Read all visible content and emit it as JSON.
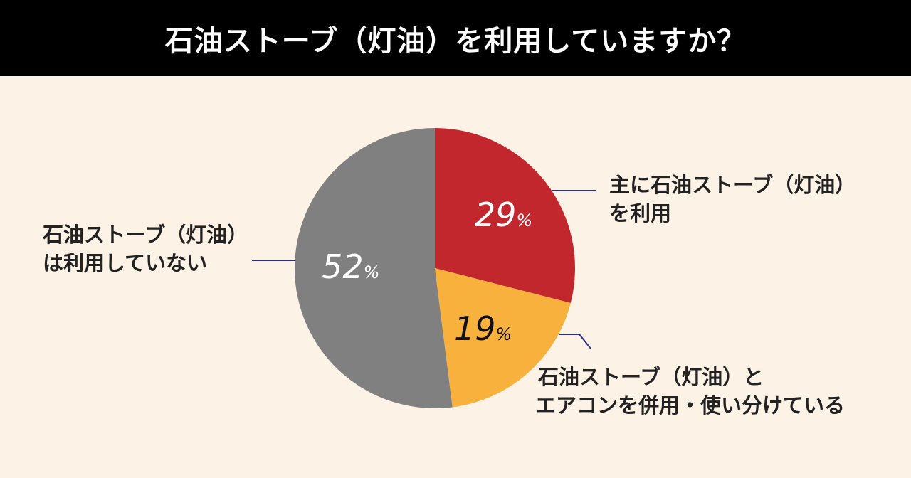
{
  "title": "石油ストーブ（灯油）を利用していますか？",
  "colors": {
    "background": "#fdf2e6",
    "title_bar": "#000000",
    "leader_line": "#2b2f8f"
  },
  "chart_data": {
    "type": "pie",
    "title": "石油ストーブ（灯油）を利用していますか？",
    "slices": [
      {
        "name_lines": [
          "主に石油ストーブ（灯油）",
          "を利用"
        ],
        "value": 29,
        "value_label": "29",
        "unit": "%",
        "color": "#c1272d",
        "value_text_color": "#ffffff"
      },
      {
        "name_lines": [
          "石油ストーブ（灯油）と",
          "エアコンを併用・使い分けている"
        ],
        "value": 19,
        "value_label": "19",
        "unit": "%",
        "color": "#f9b13d",
        "value_text_color": "#111111"
      },
      {
        "name_lines": [
          "石油ストーブ（灯油）",
          "は利用していない"
        ],
        "value": 52,
        "value_label": "52",
        "unit": "%",
        "color": "#808080",
        "value_text_color": "#ffffff"
      }
    ]
  }
}
